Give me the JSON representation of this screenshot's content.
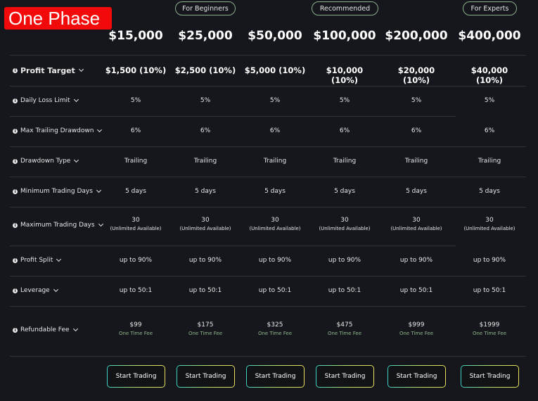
{
  "banner": "One Phase",
  "tags": [
    "For Beginners",
    "Recommended",
    "For Experts"
  ],
  "plans": [
    "$15,000",
    "$25,000",
    "$50,000",
    "$100,000",
    "$200,000",
    "$400,000"
  ],
  "rows": [
    {
      "label": "Profit Target",
      "values": [
        "$1,500 (10%)",
        "$2,500 (10%)",
        "$5,000 (10%)",
        "$10,000 (10%)",
        "$20,000 (10%)",
        "$40,000 (10%)"
      ]
    },
    {
      "label": "Daily Loss Limit",
      "values": [
        "5%",
        "5%",
        "5%",
        "5%",
        "5%",
        "5%"
      ]
    },
    {
      "label": "Max Trailing Drawdown",
      "values": [
        "6%",
        "6%",
        "6%",
        "6%",
        "6%",
        "6%"
      ]
    },
    {
      "label": "Drawdown Type",
      "values": [
        "Trailing",
        "Trailing",
        "Trailing",
        "Trailing",
        "Trailing",
        "Trailing"
      ]
    },
    {
      "label": "Minimum Trading Days",
      "values": [
        "5 days",
        "5 days",
        "5 days",
        "5 days",
        "5 days",
        "5 days"
      ]
    },
    {
      "label": "Maximum Trading Days",
      "values": [
        "30",
        "30",
        "30",
        "30",
        "30",
        "30"
      ],
      "sub": "(Unlimited Available)"
    },
    {
      "label": "Profit Split",
      "values": [
        "up to 90%",
        "up to 90%",
        "up to 90%",
        "up to 90%",
        "up to 90%",
        "up to 90%"
      ]
    },
    {
      "label": "Leverage",
      "values": [
        "up to 50:1",
        "up to 50:1",
        "up to 50:1",
        "up to 50:1",
        "up to 50:1",
        "up to 50:1"
      ]
    },
    {
      "label": "Refundable Fee",
      "values": [
        "$99",
        "$175",
        "$325",
        "$475",
        "$999",
        "$1999"
      ],
      "sub": "One Time Fee"
    }
  ],
  "button_label": "Start Trading",
  "colors": {
    "background": "#15171c",
    "banner": "#f20a0a",
    "accent_green": "#8fb58c"
  }
}
